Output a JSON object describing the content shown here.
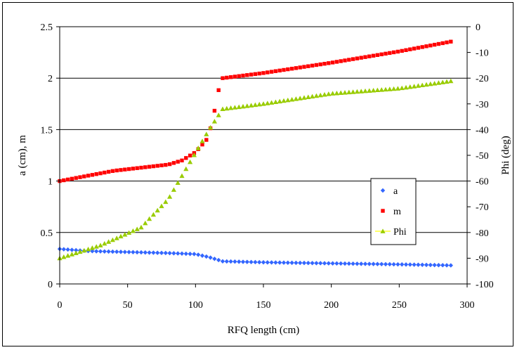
{
  "chart_data": {
    "type": "scatter",
    "title": "",
    "xlabel": "RFQ length (cm)",
    "ylabel_left": "a (cm), m",
    "ylabel_right": "Phi (deg)",
    "xlim": [
      0,
      300
    ],
    "ylim_left": [
      0,
      2.5
    ],
    "ylim_right": [
      -100,
      0
    ],
    "x_ticks": [
      "0",
      "50",
      "100",
      "150",
      "200",
      "250",
      "300"
    ],
    "y_left_ticks": [
      "0",
      "0.5",
      "1",
      "1.5",
      "2",
      "2.5"
    ],
    "y_right_ticks": [
      "-100",
      "-90",
      "-80",
      "-70",
      "-60",
      "-50",
      "-40",
      "-30",
      "-20",
      "-10",
      "0"
    ],
    "grid": "horizontal",
    "legend_position": "right-center",
    "series": [
      {
        "name": "a",
        "axis": "left",
        "color": "#3366FF",
        "marker": "diamond",
        "points": [
          [
            0,
            0.34
          ],
          [
            20,
            0.32
          ],
          [
            50,
            0.31
          ],
          [
            80,
            0.3
          ],
          [
            100,
            0.29
          ],
          [
            110,
            0.26
          ],
          [
            120,
            0.22
          ],
          [
            150,
            0.21
          ],
          [
            200,
            0.2
          ],
          [
            250,
            0.19
          ],
          [
            290,
            0.18
          ]
        ]
      },
      {
        "name": "m",
        "axis": "left",
        "color": "#FF0000",
        "marker": "square",
        "points": [
          [
            0,
            1.0
          ],
          [
            20,
            1.05
          ],
          [
            40,
            1.1
          ],
          [
            60,
            1.13
          ],
          [
            80,
            1.16
          ],
          [
            90,
            1.2
          ],
          [
            100,
            1.28
          ],
          [
            108,
            1.4
          ],
          [
            112,
            1.55
          ],
          [
            115,
            1.75
          ],
          [
            118,
            1.95
          ],
          [
            120,
            2.0
          ],
          [
            150,
            2.05
          ],
          [
            200,
            2.15
          ],
          [
            250,
            2.26
          ],
          [
            290,
            2.36
          ]
        ]
      },
      {
        "name": "Phi",
        "axis": "right",
        "color": "#99CC00",
        "marker": "triangle",
        "points": [
          [
            0,
            -90
          ],
          [
            30,
            -85
          ],
          [
            60,
            -78
          ],
          [
            80,
            -67
          ],
          [
            100,
            -49
          ],
          [
            110,
            -40
          ],
          [
            120,
            -32
          ],
          [
            150,
            -30
          ],
          [
            200,
            -26
          ],
          [
            250,
            -24
          ],
          [
            290,
            -21
          ]
        ]
      }
    ]
  }
}
